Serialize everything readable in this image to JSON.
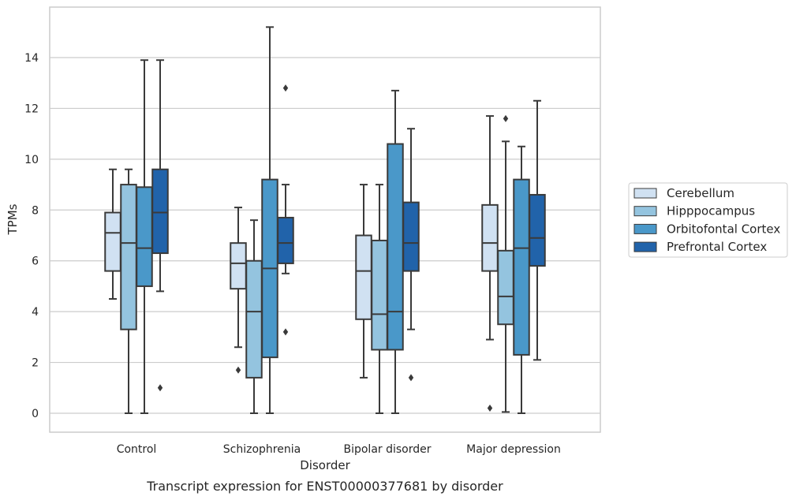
{
  "caption": "Transcript expression for ENST00000377681 by disorder",
  "chart_data": {
    "type": "box",
    "xlabel": "Disorder",
    "ylabel": "TPMs",
    "ylim": [
      -0.7,
      16.0
    ],
    "yticks": [
      0,
      2,
      4,
      6,
      8,
      10,
      12,
      14
    ],
    "grid": "horizontal",
    "legend_position": "right",
    "categories": [
      "Control",
      "Schizophrenia",
      "Bipolar disorder",
      "Major depression"
    ],
    "series": [
      {
        "name": "Cerebellum",
        "color": "#d0e1f2",
        "boxes": [
          {
            "whisker_low": 4.5,
            "q1": 5.6,
            "median": 7.1,
            "q3": 7.9,
            "whisker_high": 9.6,
            "outliers": []
          },
          {
            "whisker_low": 2.6,
            "q1": 4.9,
            "median": 5.9,
            "q3": 6.7,
            "whisker_high": 8.1,
            "outliers": [
              1.7
            ]
          },
          {
            "whisker_low": 1.4,
            "q1": 3.7,
            "median": 5.6,
            "q3": 7.0,
            "whisker_high": 9.0,
            "outliers": []
          },
          {
            "whisker_low": 2.9,
            "q1": 5.6,
            "median": 6.7,
            "q3": 8.2,
            "whisker_high": 11.7,
            "outliers": [
              0.2
            ]
          }
        ]
      },
      {
        "name": "Hipppocampus",
        "color": "#94c4df",
        "boxes": [
          {
            "whisker_low": 0.0,
            "q1": 3.3,
            "median": 6.7,
            "q3": 9.0,
            "whisker_high": 9.6,
            "outliers": []
          },
          {
            "whisker_low": 0.0,
            "q1": 1.4,
            "median": 4.0,
            "q3": 6.0,
            "whisker_high": 7.6,
            "outliers": []
          },
          {
            "whisker_low": 0.0,
            "q1": 2.5,
            "median": 3.9,
            "q3": 6.8,
            "whisker_high": 9.0,
            "outliers": []
          },
          {
            "whisker_low": 0.05,
            "q1": 3.5,
            "median": 4.6,
            "q3": 6.4,
            "whisker_high": 10.7,
            "outliers": [
              11.6
            ]
          }
        ]
      },
      {
        "name": "Orbitofontal Cortex",
        "color": "#4a98c9",
        "boxes": [
          {
            "whisker_low": 0.0,
            "q1": 5.0,
            "median": 6.5,
            "q3": 8.9,
            "whisker_high": 13.9,
            "outliers": []
          },
          {
            "whisker_low": 0.0,
            "q1": 2.2,
            "median": 5.7,
            "q3": 9.2,
            "whisker_high": 15.2,
            "outliers": []
          },
          {
            "whisker_low": 0.0,
            "q1": 2.5,
            "median": 4.0,
            "q3": 10.6,
            "whisker_high": 12.7,
            "outliers": []
          },
          {
            "whisker_low": 0.0,
            "q1": 2.3,
            "median": 6.5,
            "q3": 9.2,
            "whisker_high": 10.5,
            "outliers": []
          }
        ]
      },
      {
        "name": "Prefrontal Cortex",
        "color": "#2163aa",
        "boxes": [
          {
            "whisker_low": 4.8,
            "q1": 6.3,
            "median": 7.9,
            "q3": 9.6,
            "whisker_high": 13.9,
            "outliers": [
              1.0
            ]
          },
          {
            "whisker_low": 5.5,
            "q1": 5.9,
            "median": 6.7,
            "q3": 7.7,
            "whisker_high": 9.0,
            "outliers": [
              12.8,
              3.2
            ]
          },
          {
            "whisker_low": 3.3,
            "q1": 5.6,
            "median": 6.7,
            "q3": 8.3,
            "whisker_high": 11.2,
            "outliers": [
              1.4
            ]
          },
          {
            "whisker_low": 2.1,
            "q1": 5.8,
            "median": 6.9,
            "q3": 8.6,
            "whisker_high": 12.3,
            "outliers": []
          }
        ]
      }
    ]
  }
}
